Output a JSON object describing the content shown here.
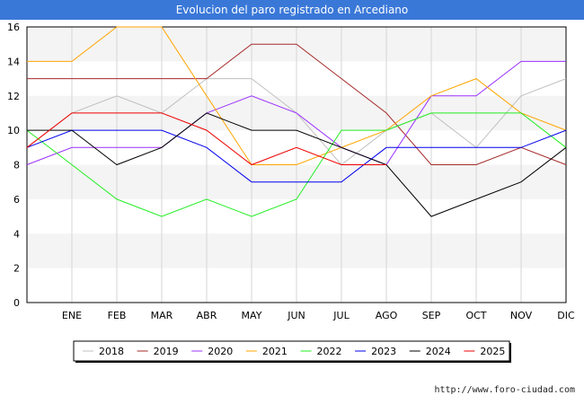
{
  "title": "Evolucion del paro registrado en Arcediano",
  "credit": "http://www.foro-ciudad.com",
  "chart_data": {
    "type": "line",
    "categories": [
      "",
      "ENE",
      "FEB",
      "MAR",
      "ABR",
      "MAY",
      "JUN",
      "JUL",
      "AGO",
      "SEP",
      "OCT",
      "NOV",
      "DIC"
    ],
    "ylim": [
      0,
      16
    ],
    "yticks": [
      0,
      2,
      4,
      6,
      8,
      10,
      12,
      14,
      16
    ],
    "grid": "vertical lines and alternating horizontal bands",
    "legend_position": "bottom",
    "series": [
      {
        "name": "2018",
        "color": "#c0c0c0",
        "values": [
          9,
          11,
          12,
          11,
          13,
          13,
          11,
          8,
          10,
          11,
          9,
          12,
          13
        ]
      },
      {
        "name": "2019",
        "color": "#a52a2a",
        "values": [
          13,
          13,
          13,
          13,
          13,
          15,
          15,
          13,
          11,
          8,
          8,
          9,
          8
        ]
      },
      {
        "name": "2020",
        "color": "#9b30ff",
        "values": [
          8,
          9,
          9,
          9,
          11,
          12,
          11,
          9,
          8,
          12,
          12,
          14,
          14
        ]
      },
      {
        "name": "2021",
        "color": "#ffa500",
        "values": [
          14,
          14,
          16,
          16,
          12,
          8,
          8,
          9,
          10,
          12,
          13,
          11,
          10
        ]
      },
      {
        "name": "2022",
        "color": "#22ee22",
        "values": [
          10,
          8,
          6,
          5,
          6,
          5,
          6,
          10,
          10,
          11,
          11,
          11,
          9
        ]
      },
      {
        "name": "2023",
        "color": "#0000ee",
        "values": [
          9,
          10,
          10,
          10,
          9,
          7,
          7,
          7,
          9,
          9,
          9,
          9,
          10
        ]
      },
      {
        "name": "2024",
        "color": "#000000",
        "values": [
          10,
          10,
          8,
          9,
          11,
          10,
          10,
          9,
          8,
          5,
          6,
          7,
          9
        ]
      },
      {
        "name": "2025",
        "color": "#ee0000",
        "values": [
          9,
          11,
          11,
          11,
          10,
          8,
          9,
          8,
          8,
          null,
          null,
          null,
          null
        ]
      }
    ]
  }
}
